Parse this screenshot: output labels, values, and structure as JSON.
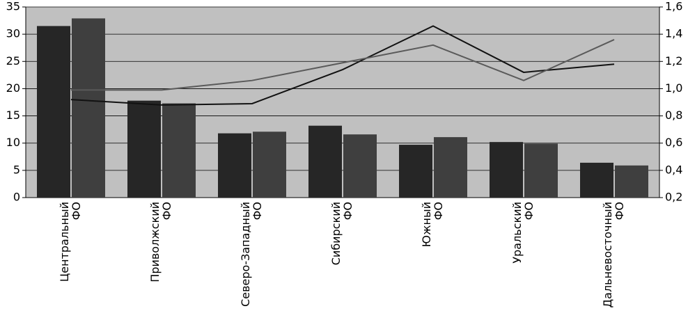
{
  "chart_data": {
    "type": "bar-line",
    "categories": [
      [
        "Центральный",
        "ФО"
      ],
      [
        "Приволжский",
        "ФО"
      ],
      [
        "Северо-Западный",
        "ФО"
      ],
      [
        "Сибирский",
        "ФО"
      ],
      [
        "Южный",
        "ФО"
      ],
      [
        "Уральский",
        "ФО"
      ],
      [
        "Дальневосточный",
        "ФО"
      ]
    ],
    "series": [
      {
        "type": "bar",
        "color": "#262626",
        "values": [
          31.5,
          17.8,
          11.8,
          13.2,
          9.7,
          10.2,
          6.4
        ]
      },
      {
        "type": "bar",
        "color": "#3f3f3f",
        "values": [
          32.9,
          17.3,
          12.1,
          11.6,
          11.1,
          9.9,
          5.9
        ]
      },
      {
        "type": "line",
        "axis": "y2",
        "color": "#111111",
        "values": [
          0.92,
          0.88,
          0.89,
          1.14,
          1.46,
          1.12,
          1.18
        ]
      },
      {
        "type": "line",
        "axis": "y2",
        "color": "#5a5a5a",
        "values": [
          0.99,
          0.99,
          1.06,
          1.19,
          1.32,
          1.06,
          1.36
        ]
      }
    ],
    "ylim": [
      0,
      35
    ],
    "yticks": [
      0,
      5,
      10,
      15,
      20,
      25,
      30,
      35
    ],
    "y2lim": [
      0.2,
      1.6
    ],
    "y2ticks": [
      {
        "value": 0.2,
        "label": "0,2"
      },
      {
        "value": 0.4,
        "label": "0,4"
      },
      {
        "value": 0.6,
        "label": "0,6"
      },
      {
        "value": 0.8,
        "label": "0,8"
      },
      {
        "value": 1.0,
        "label": "1,0"
      },
      {
        "value": 1.2,
        "label": "1,2"
      },
      {
        "value": 1.4,
        "label": "1,4"
      },
      {
        "value": 1.6,
        "label": "1,6"
      }
    ],
    "grid": true,
    "background": "#c0c0c0"
  }
}
